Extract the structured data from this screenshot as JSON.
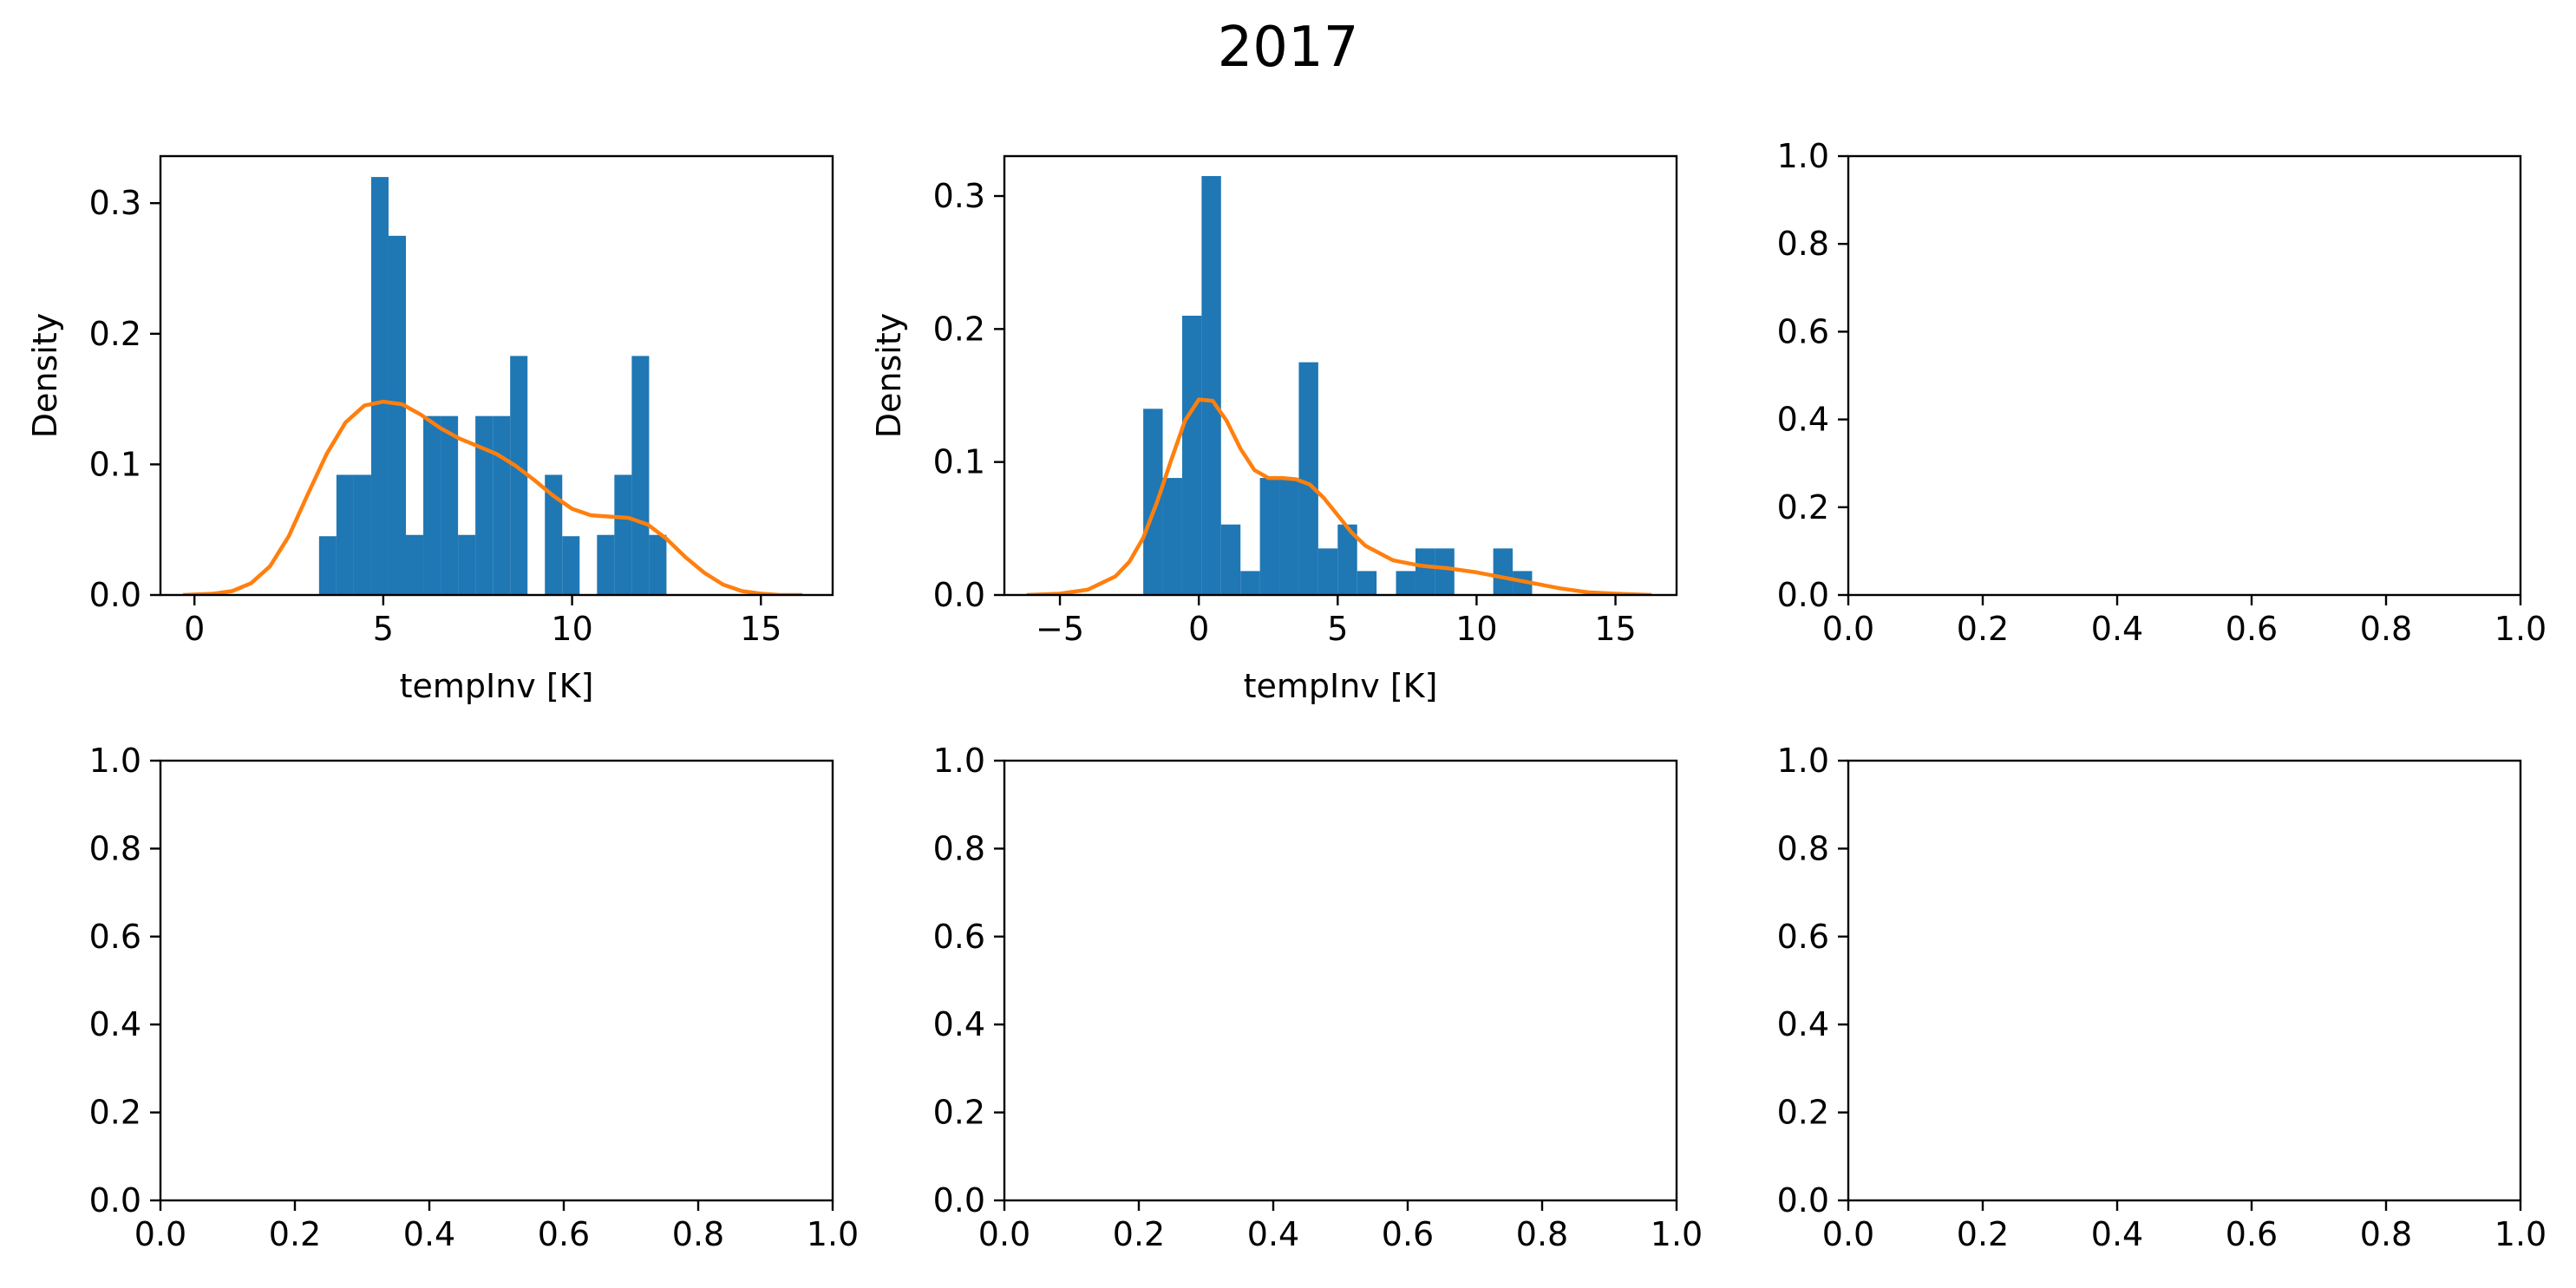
{
  "figure": {
    "title": "2017"
  },
  "colors": {
    "histogram": "#1f77b4",
    "kde": "#ff7f0e",
    "axes": "#000000"
  },
  "chart_data": [
    {
      "type": "bar",
      "panel": "top-left",
      "title": "",
      "xlabel": "tempInv [K]",
      "ylabel": "Density",
      "xlim": [
        -0.9,
        16.9
      ],
      "ylim": [
        0,
        0.336
      ],
      "xticks": [
        0,
        5,
        10,
        15
      ],
      "yticks": [
        0.0,
        0.1,
        0.2,
        0.3
      ],
      "xtick_labels": [
        "0",
        "5",
        "10",
        "15"
      ],
      "ytick_labels": [
        "0.0",
        "0.1",
        "0.2",
        "0.3"
      ],
      "grid": false,
      "series": [
        {
          "kind": "histogram",
          "bin_edges": [
            3.3,
            3.76,
            4.22,
            4.68,
            5.14,
            5.6,
            6.06,
            6.52,
            6.98,
            7.44,
            7.9,
            8.36,
            8.82,
            9.28,
            9.74,
            10.2,
            10.66,
            11.12,
            11.58,
            12.04,
            12.5
          ],
          "values": [
            0.045,
            0.092,
            0.092,
            0.32,
            0.275,
            0.046,
            0.137,
            0.137,
            0.046,
            0.137,
            0.137,
            0.183,
            0.0,
            0.092,
            0.045,
            0.0,
            0.046,
            0.092,
            0.183,
            0.046
          ]
        },
        {
          "kind": "kde",
          "x": [
            -0.3,
            0.5,
            1.0,
            1.5,
            2.0,
            2.5,
            3.0,
            3.5,
            4.0,
            4.5,
            5.0,
            5.5,
            6.0,
            6.5,
            7.0,
            7.5,
            8.0,
            8.5,
            9.0,
            9.5,
            10.0,
            10.5,
            11.0,
            11.5,
            12.0,
            12.5,
            13.0,
            13.5,
            14.0,
            14.5,
            15.0,
            15.5,
            16.1
          ],
          "y": [
            0.0,
            0.001,
            0.003,
            0.009,
            0.022,
            0.045,
            0.077,
            0.108,
            0.132,
            0.145,
            0.148,
            0.146,
            0.138,
            0.128,
            0.12,
            0.114,
            0.108,
            0.099,
            0.088,
            0.076,
            0.066,
            0.061,
            0.06,
            0.059,
            0.054,
            0.043,
            0.029,
            0.017,
            0.008,
            0.003,
            0.001,
            0.0,
            0.0
          ]
        }
      ]
    },
    {
      "type": "bar",
      "panel": "top-middle",
      "title": "",
      "xlabel": "tempInv [K]",
      "ylabel": "Density",
      "xlim": [
        -7.0,
        17.2
      ],
      "ylim": [
        0,
        0.33
      ],
      "xticks": [
        -5,
        0,
        5,
        10,
        15
      ],
      "yticks": [
        0.0,
        0.1,
        0.2,
        0.3
      ],
      "xtick_labels": [
        "−5",
        "0",
        "5",
        "10",
        "15"
      ],
      "ytick_labels": [
        "0.0",
        "0.1",
        "0.2",
        "0.3"
      ],
      "grid": false,
      "series": [
        {
          "kind": "histogram",
          "bin_edges": [
            -2.0,
            -1.3,
            -0.6,
            0.1,
            0.8,
            1.5,
            2.2,
            2.9,
            3.6,
            4.3,
            5.0,
            5.7,
            6.4,
            7.1,
            7.8,
            8.5,
            9.2,
            9.9,
            10.6,
            11.3,
            12.0
          ],
          "values": [
            0.14,
            0.088,
            0.21,
            0.315,
            0.053,
            0.018,
            0.088,
            0.088,
            0.175,
            0.035,
            0.053,
            0.018,
            0.0,
            0.018,
            0.035,
            0.035,
            0.0,
            0.0,
            0.035,
            0.018
          ]
        },
        {
          "kind": "kde",
          "x": [
            -6.2,
            -5.0,
            -4.0,
            -3.0,
            -2.5,
            -2.0,
            -1.5,
            -1.0,
            -0.5,
            0.0,
            0.5,
            1.0,
            1.5,
            2.0,
            2.5,
            3.0,
            3.5,
            4.0,
            4.5,
            5.0,
            5.5,
            6.0,
            7.0,
            8.0,
            9.0,
            10.0,
            11.0,
            12.0,
            13.0,
            14.0,
            15.0,
            16.3
          ],
          "y": [
            0.0,
            0.001,
            0.004,
            0.014,
            0.025,
            0.043,
            0.07,
            0.101,
            0.131,
            0.147,
            0.146,
            0.131,
            0.11,
            0.094,
            0.088,
            0.088,
            0.087,
            0.083,
            0.073,
            0.06,
            0.047,
            0.037,
            0.026,
            0.022,
            0.02,
            0.017,
            0.013,
            0.009,
            0.005,
            0.002,
            0.001,
            0.0
          ]
        }
      ]
    },
    {
      "type": "line",
      "panel": "top-right",
      "title": "",
      "xlabel": "",
      "ylabel": "",
      "xlim": [
        0,
        1
      ],
      "ylim": [
        0,
        1
      ],
      "xticks": [
        0,
        0.2,
        0.4,
        0.6,
        0.8,
        1.0
      ],
      "yticks": [
        0,
        0.2,
        0.4,
        0.6,
        0.8,
        1.0
      ],
      "xtick_labels": [
        "0.0",
        "0.2",
        "0.4",
        "0.6",
        "0.8",
        "1.0"
      ],
      "ytick_labels": [
        "0.0",
        "0.2",
        "0.4",
        "0.6",
        "0.8",
        "1.0"
      ],
      "grid": false,
      "series": []
    },
    {
      "type": "line",
      "panel": "bottom-left",
      "title": "",
      "xlabel": "",
      "ylabel": "",
      "xlim": [
        0,
        1
      ],
      "ylim": [
        0,
        1
      ],
      "xticks": [
        0,
        0.2,
        0.4,
        0.6,
        0.8,
        1.0
      ],
      "yticks": [
        0,
        0.2,
        0.4,
        0.6,
        0.8,
        1.0
      ],
      "xtick_labels": [
        "0.0",
        "0.2",
        "0.4",
        "0.6",
        "0.8",
        "1.0"
      ],
      "ytick_labels": [
        "0.0",
        "0.2",
        "0.4",
        "0.6",
        "0.8",
        "1.0"
      ],
      "grid": false,
      "series": []
    },
    {
      "type": "line",
      "panel": "bottom-middle",
      "title": "",
      "xlabel": "",
      "ylabel": "",
      "xlim": [
        0,
        1
      ],
      "ylim": [
        0,
        1
      ],
      "xticks": [
        0,
        0.2,
        0.4,
        0.6,
        0.8,
        1.0
      ],
      "yticks": [
        0,
        0.2,
        0.4,
        0.6,
        0.8,
        1.0
      ],
      "xtick_labels": [
        "0.0",
        "0.2",
        "0.4",
        "0.6",
        "0.8",
        "1.0"
      ],
      "ytick_labels": [
        "0.0",
        "0.2",
        "0.4",
        "0.6",
        "0.8",
        "1.0"
      ],
      "grid": false,
      "series": []
    },
    {
      "type": "line",
      "panel": "bottom-right",
      "title": "",
      "xlabel": "",
      "ylabel": "",
      "xlim": [
        0,
        1
      ],
      "ylim": [
        0,
        1
      ],
      "xticks": [
        0,
        0.2,
        0.4,
        0.6,
        0.8,
        1.0
      ],
      "yticks": [
        0,
        0.2,
        0.4,
        0.6,
        0.8,
        1.0
      ],
      "xtick_labels": [
        "0.0",
        "0.2",
        "0.4",
        "0.6",
        "0.8",
        "1.0"
      ],
      "ytick_labels": [
        "0.0",
        "0.2",
        "0.4",
        "0.6",
        "0.8",
        "1.0"
      ],
      "grid": false,
      "series": []
    }
  ]
}
